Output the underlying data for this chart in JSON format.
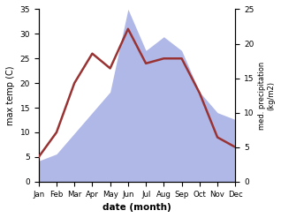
{
  "months": [
    "Jan",
    "Feb",
    "Mar",
    "Apr",
    "May",
    "Jun",
    "Jul",
    "Aug",
    "Sep",
    "Oct",
    "Nov",
    "Dec"
  ],
  "temperature": [
    5,
    10,
    20,
    26,
    23,
    31,
    24,
    25,
    25,
    18,
    9,
    7
  ],
  "precipitation": [
    3,
    4,
    7,
    10,
    13,
    25,
    19,
    21,
    19,
    13,
    10,
    9
  ],
  "temp_color": "#993333",
  "precip_color": "#b0b8e8",
  "ylabel_left": "max temp (C)",
  "ylabel_right": "med. precipitation\n(kg/m2)",
  "xlabel": "date (month)",
  "ylim_left": [
    0,
    35
  ],
  "ylim_right": [
    0,
    25
  ],
  "yticks_left": [
    0,
    5,
    10,
    15,
    20,
    25,
    30,
    35
  ],
  "yticks_right": [
    0,
    5,
    10,
    15,
    20,
    25
  ],
  "background_color": "#ffffff"
}
